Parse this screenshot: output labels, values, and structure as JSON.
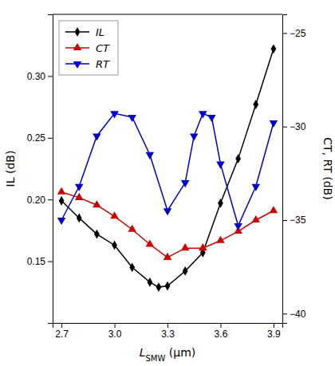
{
  "chart_data": {
    "type": "line",
    "xlabel": "LSMW (μm)",
    "ylabel": "IL (dB)",
    "y2label": "CT, RT (dB)",
    "xlim": [
      2.65,
      3.95
    ],
    "xticks": [
      2.7,
      {
        "value": 3.0,
        "label": "3.0"
      },
      3.3,
      3.6,
      3.9
    ],
    "ylim": [
      0.1,
      0.35
    ],
    "yticks": [
      0.15,
      {
        "value": 0.2,
        "label": "0.20"
      },
      0.25,
      {
        "value": 0.3,
        "label": "0.30"
      }
    ],
    "y2lim": [
      -40.5,
      -24.0
    ],
    "y2ticks": [
      {
        "value": -40,
        "label": "−40"
      },
      {
        "value": -35,
        "label": "−35"
      },
      {
        "value": -30,
        "label": "−30"
      },
      {
        "value": -25,
        "label": "−25"
      }
    ],
    "grid": false,
    "legend": "upper left",
    "series": [
      {
        "name": "IL",
        "color": "#000000",
        "marker": "diamond",
        "line_style": "solid",
        "x": [
          2.7,
          2.8,
          2.9,
          3.0,
          3.1,
          3.2,
          3.25,
          3.3,
          3.4,
          3.5,
          3.6,
          3.7,
          3.8,
          3.9
        ],
        "values": [
          0.199,
          0.185,
          0.172,
          0.163,
          0.145,
          0.133,
          0.129,
          0.13,
          0.142,
          0.157,
          0.197,
          0.233,
          0.277,
          0.322
        ]
      },
      {
        "name": "CT",
        "color": "#cc0000",
        "marker": "triangle-up",
        "line_style": "solid",
        "axis": "y2",
        "x": [
          2.7,
          2.8,
          2.9,
          3.0,
          3.1,
          3.2,
          3.3,
          3.4,
          3.5,
          3.6,
          3.7,
          3.8,
          3.9
        ],
        "values": [
          -33.5,
          -33.8,
          -34.2,
          -34.8,
          -35.5,
          -36.3,
          -37.0,
          -36.5,
          -36.5,
          -36.1,
          -35.6,
          -35.0,
          -34.5
        ]
      },
      {
        "name": "RT",
        "color": "#0000cc",
        "marker": "triangle-down",
        "line_style": "solid",
        "axis": "y2",
        "x": [
          2.7,
          2.8,
          2.9,
          3.0,
          3.1,
          3.2,
          3.3,
          3.4,
          3.45,
          3.5,
          3.55,
          3.6,
          3.7,
          3.8,
          3.9
        ],
        "values": [
          -35.0,
          -33.2,
          -30.5,
          -29.3,
          -29.5,
          -31.5,
          -34.5,
          -33.0,
          -30.5,
          -29.3,
          -29.5,
          -32.0,
          -35.3,
          -33.2,
          -29.8
        ]
      }
    ]
  }
}
